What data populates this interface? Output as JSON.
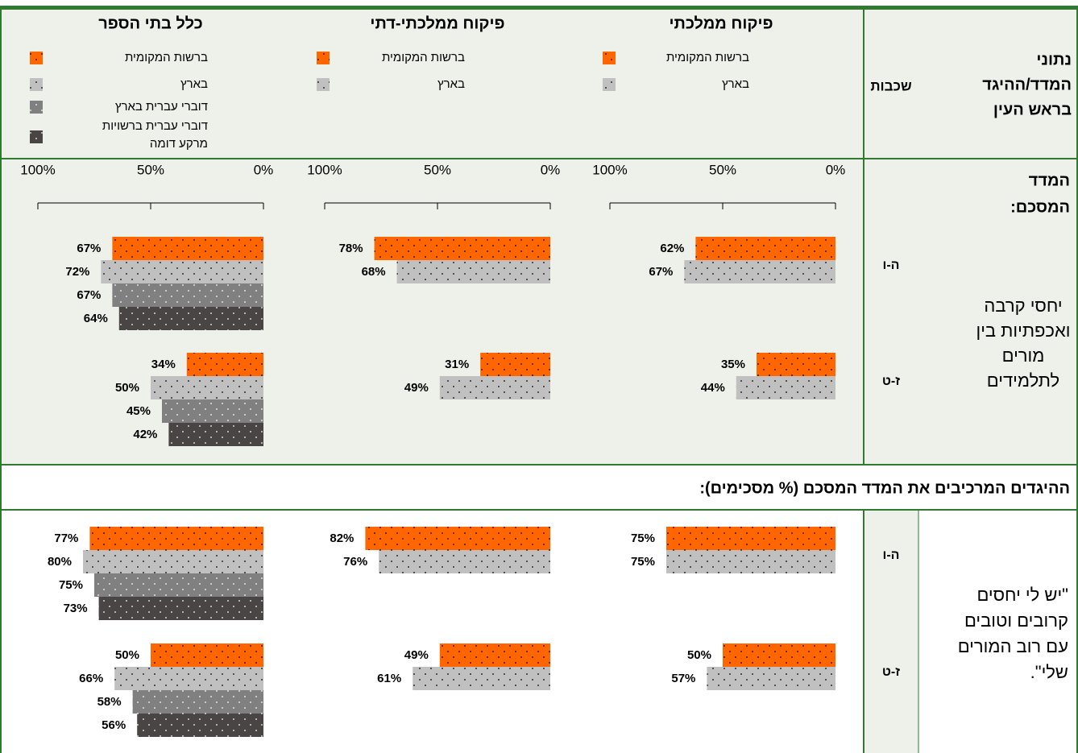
{
  "header": {
    "title_lines": [
      "נתוני",
      "המדד/ההיגד"
    ],
    "highlight": "בראש העין",
    "grades_label": "שכבות"
  },
  "panels": [
    {
      "title": "פיקוח ממלכתי",
      "legend": [
        {
          "lines": [
            "ברשות המקומית"
          ],
          "color": "#ff6600",
          "dot_color": "#000000"
        },
        {
          "lines": [
            "בארץ"
          ],
          "color": "#c0c0c0",
          "dot_color": "#000000"
        }
      ]
    },
    {
      "title": "פיקוח ממלכתי-דתי",
      "legend": [
        {
          "lines": [
            "ברשות המקומית"
          ],
          "color": "#ff6600",
          "dot_color": "#000000"
        },
        {
          "lines": [
            "בארץ"
          ],
          "color": "#c0c0c0",
          "dot_color": "#000000"
        }
      ]
    },
    {
      "title": "כלל בתי הספר",
      "legend": [
        {
          "lines": [
            "ברשות המקומית"
          ],
          "color": "#ff6600",
          "dot_color": "#000000"
        },
        {
          "lines": [
            "בארץ"
          ],
          "color": "#c0c0c0",
          "dot_color": "#000000"
        },
        {
          "lines": [
            "דוברי עברית בארץ"
          ],
          "color": "#808080",
          "dot_color": "#ffffff"
        },
        {
          "lines": [
            "דוברי עברית ברשויות",
            "מרקע דומה"
          ],
          "color": "#4a4545",
          "dot_color": "#ffffff"
        }
      ]
    }
  ],
  "axis": {
    "xlim": [
      0,
      100
    ],
    "xticks": [
      {
        "value": 0,
        "label": "0%"
      },
      {
        "value": 50,
        "label": "50%"
      },
      {
        "value": 100,
        "label": "100%"
      }
    ]
  },
  "summary": {
    "title_lines": [
      "המדד",
      "המסכם:"
    ],
    "text_lines": [
      "יחסי קרבה",
      "ואכפתיות בין",
      "מורים",
      "לתלמידים"
    ],
    "grades": [
      {
        "label": "ה-ו",
        "panels": [
          {
            "values": [
              62,
              67
            ],
            "value_labels": [
              "62%",
              "67%"
            ]
          },
          {
            "values": [
              78,
              68
            ],
            "value_labels": [
              "78%",
              "68%"
            ]
          },
          {
            "values": [
              67,
              72,
              67,
              64
            ],
            "value_labels": [
              "67%",
              "72%",
              "67%",
              "64%"
            ]
          }
        ]
      },
      {
        "label": "ז-ט",
        "panels": [
          {
            "values": [
              35,
              44
            ],
            "value_labels": [
              "35%",
              "44%"
            ]
          },
          {
            "values": [
              31,
              49
            ],
            "value_labels": [
              "31%",
              "49%"
            ]
          },
          {
            "values": [
              34,
              50,
              45,
              42
            ],
            "value_labels": [
              "34%",
              "50%",
              "45%",
              "42%"
            ]
          }
        ]
      }
    ]
  },
  "items_heading": "ההיגדים המרכיבים את המדד המסכם (% מסכימים):",
  "item": {
    "text_lines": [
      "\"יש לי יחסים",
      "קרובים וטובים",
      "עם רוב המורים",
      "שלי\"."
    ],
    "grades": [
      {
        "label": "ה-ו",
        "panels": [
          {
            "values": [
              75,
              75
            ],
            "value_labels": [
              "75%",
              "75%"
            ]
          },
          {
            "values": [
              82,
              76
            ],
            "value_labels": [
              "82%",
              "76%"
            ]
          },
          {
            "values": [
              77,
              80,
              75,
              73
            ],
            "value_labels": [
              "77%",
              "80%",
              "75%",
              "73%"
            ]
          }
        ]
      },
      {
        "label": "ז-ט",
        "panels": [
          {
            "values": [
              50,
              57
            ],
            "value_labels": [
              "50%",
              "57%"
            ]
          },
          {
            "values": [
              49,
              61
            ],
            "value_labels": [
              "49%",
              "61%"
            ]
          },
          {
            "values": [
              50,
              66,
              58,
              56
            ],
            "value_labels": [
              "50%",
              "66%",
              "58%",
              "56%"
            ]
          }
        ]
      }
    ]
  }
}
